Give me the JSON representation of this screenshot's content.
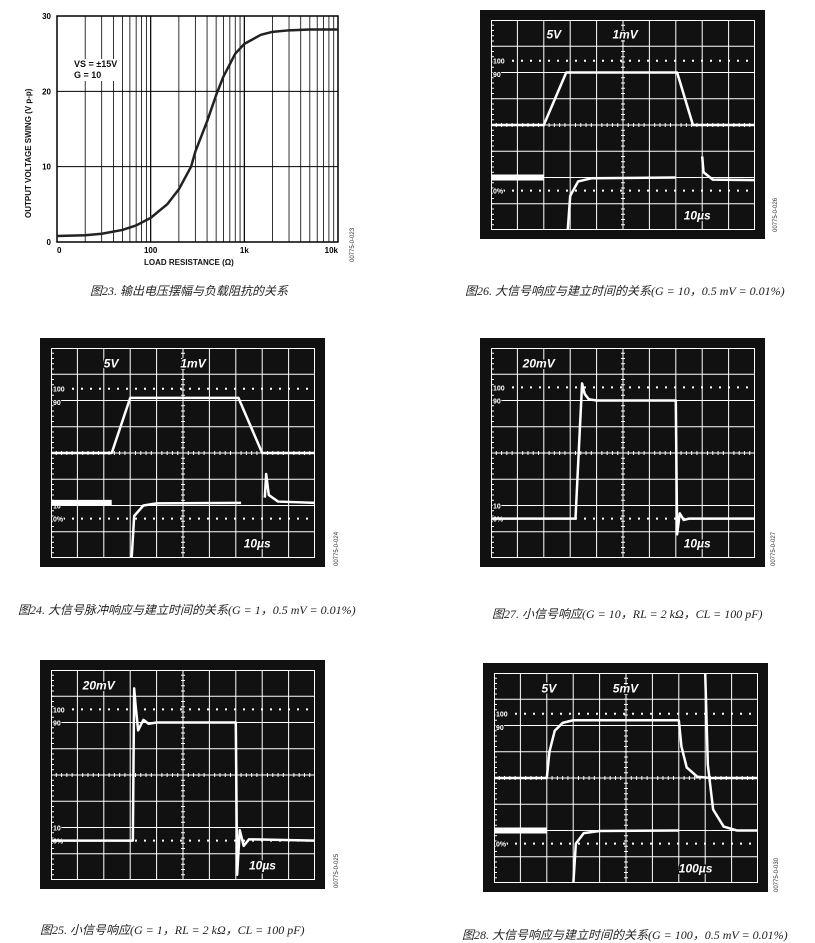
{
  "figures": {
    "fig23": {
      "caption": "图23. 输出电压摆幅与负载阻抗的关系",
      "id": "00775-0-023",
      "annotation": {
        "line1": "VS = ±15V",
        "line2": "G = 10"
      }
    },
    "fig26": {
      "caption": "图26. 大信号响应与建立时间的关系(G = 10，0.5 mV = 0.01%)",
      "id": "00775-0-026",
      "labels": [
        "5V",
        "1mV",
        "10µs"
      ],
      "side_labels": [
        "100",
        "90",
        "10",
        "0%"
      ]
    },
    "fig24": {
      "caption": "图24. 大信号脉冲响应与建立时间的关系(G = 1，0.5 mV = 0.01%)",
      "id": "00775-0-024",
      "labels": [
        "5V",
        "1mV",
        "10µs"
      ],
      "side_labels": [
        "100",
        "90",
        "10",
        "0%"
      ]
    },
    "fig27": {
      "caption": "图27. 小信号响应(G = 10，RL = 2 kΩ，CL = 100 pF)",
      "id": "00775-0-027",
      "labels": [
        "20mV",
        "10µs"
      ],
      "side_labels": [
        "100",
        "90",
        "10",
        "0%"
      ]
    },
    "fig25": {
      "caption": "图25. 小信号响应(G = 1，RL = 2 kΩ，CL = 100 pF)",
      "id": "00775-0-025",
      "labels": [
        "20mV",
        "10µs"
      ],
      "side_labels": [
        "100",
        "90",
        "10",
        "0%"
      ]
    },
    "fig28": {
      "caption": "图28. 大信号响应与建立时间的关系(G = 100，0.5 mV = 0.01%)",
      "id": "00775-0-030",
      "labels": [
        "5V",
        "5mV",
        "100µs"
      ],
      "side_labels": [
        "100",
        "90",
        "10",
        "0%"
      ]
    }
  },
  "chart_data": {
    "type": "line",
    "title": "",
    "xlabel": "LOAD RESISTANCE (Ω)",
    "ylabel": "OUTPUT VOLTAGE SWING (V p-p)",
    "x_scale": "log",
    "xlim": [
      10,
      10000
    ],
    "ylim": [
      0,
      30
    ],
    "x_tick_labels": [
      "0",
      "100",
      "1k",
      "10k"
    ],
    "y_ticks": [
      0,
      10,
      20,
      30
    ],
    "grid": true,
    "x": [
      10,
      20,
      30,
      50,
      70,
      100,
      150,
      200,
      270,
      300,
      400,
      500,
      600,
      800,
      1000,
      1500,
      2000,
      3000,
      5000,
      10000
    ],
    "y": [
      0.8,
      0.9,
      1.1,
      1.6,
      2.2,
      3.2,
      5.0,
      7.0,
      10.0,
      12.0,
      16.0,
      19.5,
      22.0,
      25.0,
      26.3,
      27.5,
      27.9,
      28.1,
      28.2,
      28.2
    ]
  }
}
